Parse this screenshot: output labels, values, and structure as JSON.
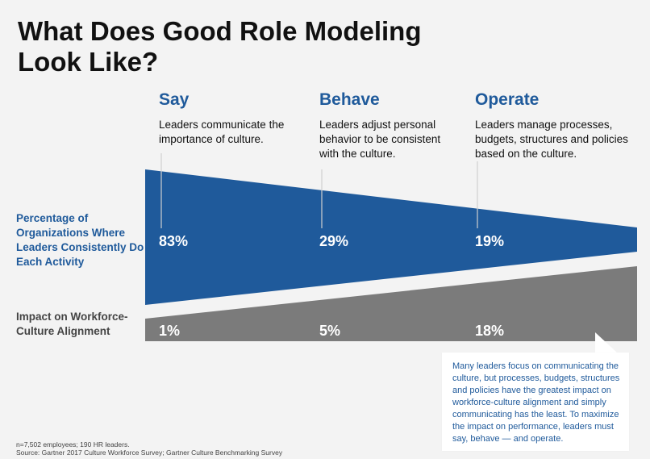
{
  "title": "What Does Good Role Modeling\nLook Like?",
  "columns": [
    {
      "heading": "Say",
      "description": "Leaders communicate the importance of culture.",
      "leaders_pct": "83%",
      "impact_pct": "1%"
    },
    {
      "heading": "Behave",
      "description": "Leaders adjust personal behavior to be consistent with the culture.",
      "leaders_pct": "29%",
      "impact_pct": "5%"
    },
    {
      "heading": "Operate",
      "description": "Leaders manage processes, budgets, structures and policies based on the culture.",
      "leaders_pct": "19%",
      "impact_pct": "18%"
    }
  ],
  "rows": {
    "leaders_label": "Percentage of Organizations Where Leaders Consistently Do Each Activity",
    "impact_label": "Impact on Workforce-Culture Alignment"
  },
  "callout": "Many leaders focus on communicating the culture, but processes, budgets, structures and policies have the greatest impact on workforce-culture alignment and simply communicating has the least. To maximize the impact on performance, leaders must say, behave — and operate.",
  "footnote": {
    "line1": "n=7,502 employees; 190 HR leaders.",
    "line2": "Source: Gartner 2017 Culture Workforce Survey; Gartner Culture Benchmarking Survey"
  },
  "colors": {
    "blue": "#1f5a9b",
    "gray": "#7b7b7b",
    "background": "#f3f3f3"
  }
}
